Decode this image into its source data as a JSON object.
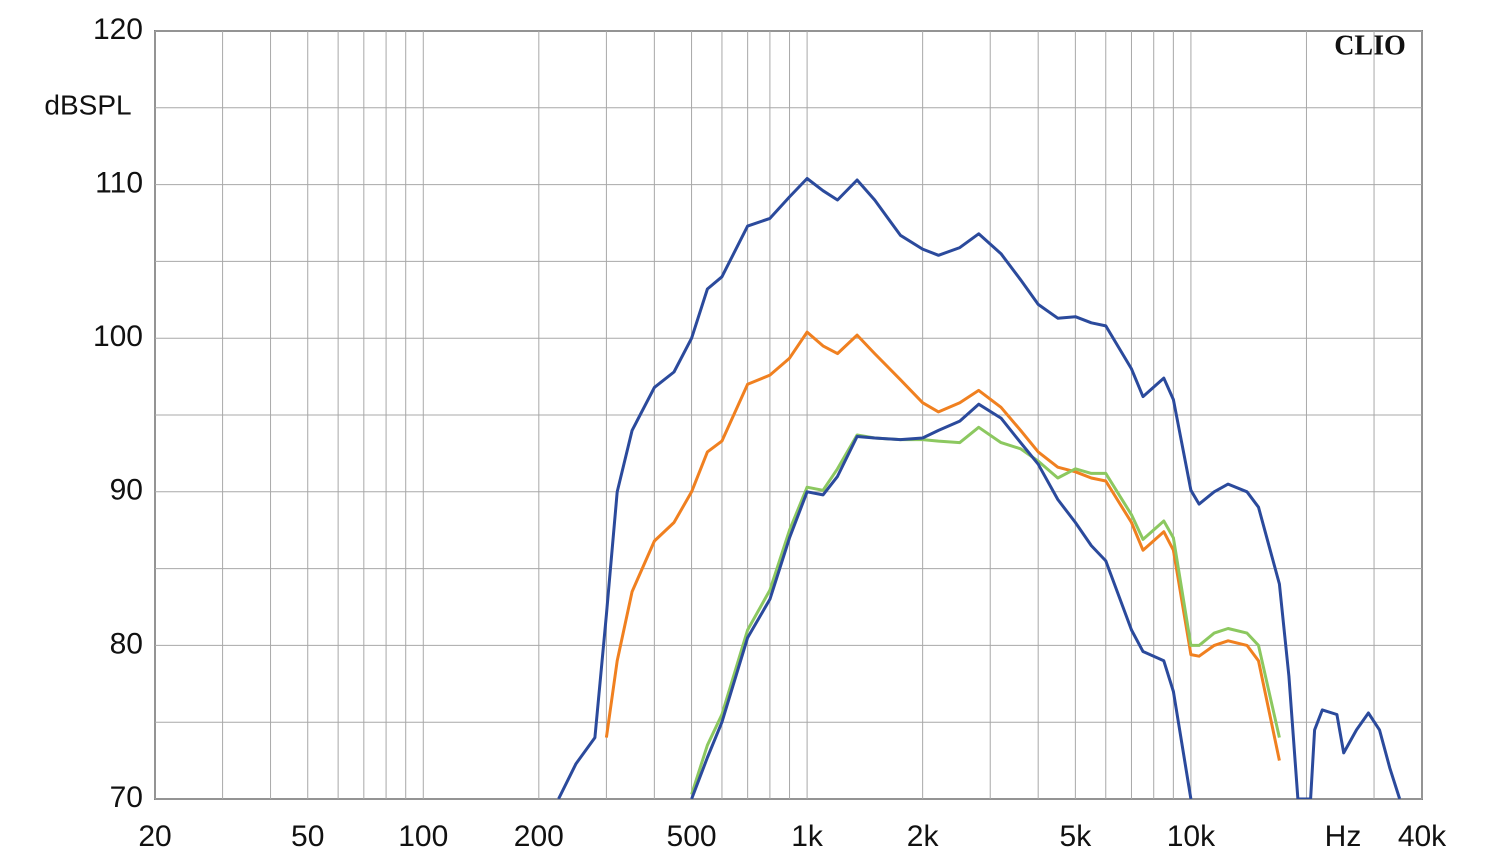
{
  "chart_data": {
    "type": "line",
    "brand": "CLIO",
    "ylabel": "dBSPL",
    "xlabel": "Hz",
    "log_x": true,
    "grid": true,
    "xlim": [
      20,
      40000
    ],
    "ylim": [
      70,
      120
    ],
    "xticks": [
      20,
      50,
      100,
      200,
      500,
      {
        "value": 1000,
        "label": "1k"
      },
      {
        "value": 2000,
        "label": "2k"
      },
      {
        "value": 5000,
        "label": "5k"
      },
      {
        "value": 10000,
        "label": "10k"
      },
      {
        "value": 40000,
        "label": "40k"
      }
    ],
    "xminor": [
      30,
      40,
      60,
      70,
      80,
      90,
      300,
      400,
      600,
      700,
      800,
      900,
      3000,
      4000,
      6000,
      7000,
      8000,
      9000,
      20000,
      30000
    ],
    "yticks": [
      70,
      80,
      90,
      100,
      110,
      120
    ],
    "yminor": [
      75,
      85,
      95,
      105,
      115
    ],
    "x": [
      225,
      250,
      280,
      300,
      320,
      350,
      400,
      450,
      500,
      550,
      600,
      700,
      800,
      900,
      1000,
      1100,
      1200,
      1350,
      1500,
      1750,
      2000,
      2200,
      2500,
      2800,
      3200,
      3600,
      4000,
      4500,
      5000,
      5500,
      6000,
      7000,
      7500,
      8500,
      9000,
      10000,
      10500,
      11500,
      12500,
      14000,
      15000,
      17000,
      18000,
      19000,
      20500,
      21000,
      22000,
      24000,
      25000,
      27000,
      29000,
      31000,
      33000,
      35000
    ],
    "series": [
      {
        "color": "#2b4a9c",
        "values": [
          70,
          72.3,
          74,
          82,
          90,
          94,
          96.8,
          97.8,
          100,
          103.2,
          104,
          107.3,
          107.8,
          109.2,
          110.4,
          109.6,
          109,
          110.3,
          109,
          106.7,
          105.8,
          105.4,
          105.9,
          106.8,
          105.5,
          103.8,
          102.2,
          101.3,
          101.4,
          101,
          100.8,
          98,
          96.2,
          97.4,
          96,
          90.1,
          89.2,
          90,
          90.5,
          90,
          89,
          84,
          78,
          70,
          70,
          74.5,
          75.8,
          75.5,
          73,
          74.5,
          75.6,
          74.5,
          72,
          70
        ]
      },
      {
        "color": "#f08020",
        "values": [
          null,
          null,
          null,
          74,
          79,
          83.5,
          86.8,
          88,
          90,
          92.6,
          93.3,
          97,
          97.6,
          98.7,
          100.4,
          99.5,
          99,
          100.2,
          99,
          97.3,
          95.8,
          95.2,
          95.8,
          96.6,
          95.5,
          94,
          92.6,
          91.6,
          91.3,
          90.9,
          90.7,
          88,
          86.2,
          87.4,
          86.2,
          79.4,
          79.3,
          80,
          80.3,
          80,
          79,
          72.5,
          null,
          null,
          null,
          null,
          null,
          null,
          null,
          null,
          null,
          null,
          null,
          null
        ]
      },
      {
        "color": "#8cc860",
        "values": [
          null,
          null,
          null,
          null,
          null,
          null,
          null,
          null,
          70.3,
          73.5,
          75.5,
          81,
          83.6,
          87.5,
          90.3,
          90.1,
          91.5,
          93.7,
          93.5,
          93.4,
          93.4,
          93.3,
          93.2,
          94.2,
          93.2,
          92.8,
          92,
          90.9,
          91.5,
          91.2,
          91.2,
          88.5,
          86.9,
          88.1,
          87,
          80,
          80,
          80.8,
          81.1,
          80.8,
          80,
          74,
          null,
          null,
          null,
          null,
          null,
          null,
          null,
          null,
          null,
          null,
          null,
          null
        ]
      },
      {
        "color": "#2b4a9c",
        "values": [
          null,
          null,
          null,
          null,
          null,
          null,
          null,
          null,
          70,
          72.7,
          75,
          80.5,
          83,
          87,
          90,
          89.8,
          91,
          93.6,
          93.5,
          93.4,
          93.5,
          94,
          94.6,
          95.7,
          94.8,
          93.2,
          91.8,
          89.5,
          88,
          86.5,
          85.5,
          81,
          79.6,
          79,
          77,
          70,
          null,
          null,
          null,
          null,
          null,
          null,
          null,
          null,
          null,
          null,
          null,
          null,
          null,
          null,
          null,
          null,
          null,
          null
        ]
      }
    ]
  }
}
